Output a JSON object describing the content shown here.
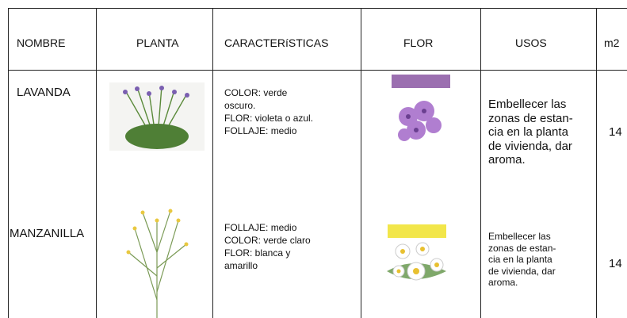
{
  "table": {
    "header": [
      "NOMBRE",
      "PLANTA",
      "CARACTERíSTICAS",
      "FLOR",
      "USOS",
      "m2"
    ],
    "rows": [
      {
        "nombre": "LAVANDA",
        "caracteristicas": [
          "COLOR: verde",
          "oscuro.",
          "FLOR: violeta o azul.",
          "FOLLAJE: medio"
        ],
        "usos": [
          "Embellecer las",
          "zonas de estan-",
          "cia en la planta",
          "de vivienda, dar",
          "aroma."
        ],
        "m2": 14
      },
      {
        "nombre": "MANZANILLA",
        "caracteristicas": [
          "FOLLAJE: medio",
          "COLOR: verde claro",
          "FLOR: blanca y",
          "amarillo"
        ],
        "usos": [
          "Embellecer las",
          "zonas de estan-",
          "cia en la planta",
          "de vivienda, dar",
          "aroma."
        ],
        "m2": 14
      }
    ]
  }
}
